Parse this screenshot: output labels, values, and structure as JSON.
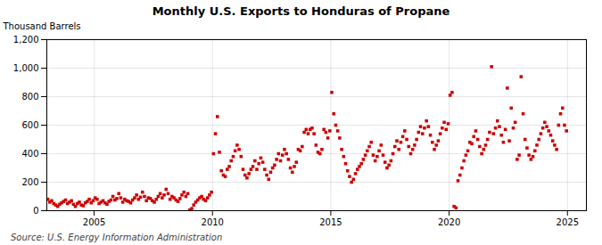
{
  "chart_data": {
    "type": "scatter",
    "title": "Monthly U.S. Exports to Honduras of Propane",
    "ylabel": "Thousand Barrels",
    "source": "Source: U.S. Energy Information Administration",
    "color": "#cc0000",
    "marker": "square",
    "grid": true,
    "xlim": [
      2003.0,
      2025.8
    ],
    "xticks": [
      2005,
      2010,
      2015,
      2020,
      2025
    ],
    "ylim": [
      0,
      1200
    ],
    "yticks": [
      0,
      200,
      400,
      600,
      800,
      {
        "value": 1000,
        "label": "1,000"
      },
      {
        "value": 1200,
        "label": "1,200"
      }
    ],
    "x": [
      2003.041667,
      2003.125,
      2003.208333,
      2003.291667,
      2003.375,
      2003.458333,
      2003.541667,
      2003.625,
      2003.708333,
      2003.791667,
      2003.875,
      2003.958333,
      2004.041667,
      2004.125,
      2004.208333,
      2004.291667,
      2004.375,
      2004.458333,
      2004.541667,
      2004.625,
      2004.708333,
      2004.791667,
      2004.875,
      2004.958333,
      2005.041667,
      2005.125,
      2005.208333,
      2005.291667,
      2005.375,
      2005.458333,
      2005.541667,
      2005.625,
      2005.708333,
      2005.791667,
      2005.875,
      2005.958333,
      2006.041667,
      2006.125,
      2006.208333,
      2006.291667,
      2006.375,
      2006.458333,
      2006.541667,
      2006.625,
      2006.708333,
      2006.791667,
      2006.875,
      2006.958333,
      2007.041667,
      2007.125,
      2007.208333,
      2007.291667,
      2007.375,
      2007.458333,
      2007.541667,
      2007.625,
      2007.708333,
      2007.791667,
      2007.875,
      2007.958333,
      2008.041667,
      2008.125,
      2008.208333,
      2008.291667,
      2008.375,
      2008.458333,
      2008.541667,
      2008.625,
      2008.708333,
      2008.791667,
      2008.875,
      2008.958333,
      2009.041667,
      2009.125,
      2009.208333,
      2009.291667,
      2009.375,
      2009.458333,
      2009.541667,
      2009.625,
      2009.708333,
      2009.791667,
      2009.875,
      2009.958333,
      2010.041667,
      2010.125,
      2010.208333,
      2010.291667,
      2010.375,
      2010.458333,
      2010.541667,
      2010.625,
      2010.708333,
      2010.791667,
      2010.875,
      2010.958333,
      2011.041667,
      2011.125,
      2011.208333,
      2011.291667,
      2011.375,
      2011.458333,
      2011.541667,
      2011.625,
      2011.708333,
      2011.791667,
      2011.875,
      2011.958333,
      2012.041667,
      2012.125,
      2012.208333,
      2012.291667,
      2012.375,
      2012.458333,
      2012.541667,
      2012.625,
      2012.708333,
      2012.791667,
      2012.875,
      2012.958333,
      2013.041667,
      2013.125,
      2013.208333,
      2013.291667,
      2013.375,
      2013.458333,
      2013.541667,
      2013.625,
      2013.708333,
      2013.791667,
      2013.875,
      2013.958333,
      2014.041667,
      2014.125,
      2014.208333,
      2014.291667,
      2014.375,
      2014.458333,
      2014.541667,
      2014.625,
      2014.708333,
      2014.791667,
      2014.875,
      2014.958333,
      2015.041667,
      2015.125,
      2015.208333,
      2015.291667,
      2015.375,
      2015.458333,
      2015.541667,
      2015.625,
      2015.708333,
      2015.791667,
      2015.875,
      2015.958333,
      2016.041667,
      2016.125,
      2016.208333,
      2016.291667,
      2016.375,
      2016.458333,
      2016.541667,
      2016.625,
      2016.708333,
      2016.791667,
      2016.875,
      2016.958333,
      2017.041667,
      2017.125,
      2017.208333,
      2017.291667,
      2017.375,
      2017.458333,
      2017.541667,
      2017.625,
      2017.708333,
      2017.791667,
      2017.875,
      2017.958333,
      2018.041667,
      2018.125,
      2018.208333,
      2018.291667,
      2018.375,
      2018.458333,
      2018.541667,
      2018.625,
      2018.708333,
      2018.791667,
      2018.875,
      2018.958333,
      2019.041667,
      2019.125,
      2019.208333,
      2019.291667,
      2019.375,
      2019.458333,
      2019.541667,
      2019.625,
      2019.708333,
      2019.791667,
      2019.875,
      2019.958333,
      2020.041667,
      2020.125,
      2020.208333,
      2020.291667,
      2020.375,
      2020.458333,
      2020.541667,
      2020.625,
      2020.708333,
      2020.791667,
      2020.875,
      2020.958333,
      2021.041667,
      2021.125,
      2021.208333,
      2021.291667,
      2021.375,
      2021.458333,
      2021.541667,
      2021.625,
      2021.708333,
      2021.791667,
      2021.875,
      2021.958333,
      2022.041667,
      2022.125,
      2022.208333,
      2022.291667,
      2022.375,
      2022.458333,
      2022.541667,
      2022.625,
      2022.708333,
      2022.791667,
      2022.875,
      2022.958333,
      2023.041667,
      2023.125,
      2023.208333,
      2023.291667,
      2023.375,
      2023.458333,
      2023.541667,
      2023.625,
      2023.708333,
      2023.791667,
      2023.875,
      2023.958333,
      2024.041667,
      2024.125,
      2024.208333,
      2024.291667,
      2024.375,
      2024.458333,
      2024.541667,
      2024.625,
      2024.708333,
      2024.791667,
      2024.875,
      2024.958333
    ],
    "values": [
      80,
      60,
      70,
      50,
      40,
      30,
      45,
      55,
      65,
      75,
      50,
      60,
      70,
      45,
      30,
      50,
      60,
      40,
      35,
      55,
      65,
      80,
      55,
      70,
      90,
      80,
      50,
      60,
      70,
      55,
      45,
      65,
      75,
      100,
      75,
      85,
      120,
      90,
      60,
      80,
      70,
      65,
      55,
      75,
      90,
      110,
      80,
      95,
      130,
      100,
      70,
      90,
      85,
      70,
      60,
      80,
      100,
      120,
      90,
      110,
      150,
      120,
      80,
      100,
      90,
      75,
      65,
      85,
      110,
      130,
      100,
      120,
      5,
      15,
      40,
      60,
      75,
      90,
      100,
      80,
      70,
      90,
      110,
      130,
      400,
      540,
      660,
      410,
      280,
      250,
      240,
      290,
      310,
      350,
      380,
      420,
      460,
      430,
      380,
      290,
      250,
      230,
      260,
      290,
      310,
      350,
      290,
      330,
      370,
      340,
      290,
      250,
      220,
      270,
      300,
      320,
      360,
      400,
      350,
      390,
      430,
      400,
      360,
      300,
      270,
      310,
      340,
      430,
      420,
      450,
      550,
      570,
      540,
      570,
      580,
      540,
      460,
      410,
      400,
      430,
      570,
      550,
      510,
      560,
      830,
      680,
      600,
      560,
      510,
      430,
      380,
      330,
      280,
      240,
      200,
      220,
      260,
      290,
      310,
      330,
      360,
      390,
      420,
      450,
      480,
      390,
      350,
      380,
      420,
      460,
      390,
      340,
      300,
      320,
      350,
      400,
      450,
      490,
      430,
      480,
      520,
      560,
      500,
      450,
      400,
      430,
      460,
      500,
      550,
      590,
      540,
      580,
      630,
      590,
      530,
      480,
      430,
      460,
      490,
      540,
      580,
      620,
      570,
      610,
      810,
      830,
      30,
      20,
      210,
      250,
      300,
      350,
      390,
      420,
      480,
      470,
      520,
      560,
      500,
      450,
      400,
      430,
      460,
      500,
      550,
      1010,
      540,
      580,
      630,
      590,
      530,
      480,
      570,
      860,
      490,
      720,
      580,
      620,
      360,
      390,
      940,
      680,
      500,
      440,
      390,
      360,
      380,
      420,
      460,
      500,
      540,
      580,
      620,
      590,
      560,
      530,
      490,
      460,
      430,
      600,
      680,
      720,
      600,
      560
    ]
  }
}
